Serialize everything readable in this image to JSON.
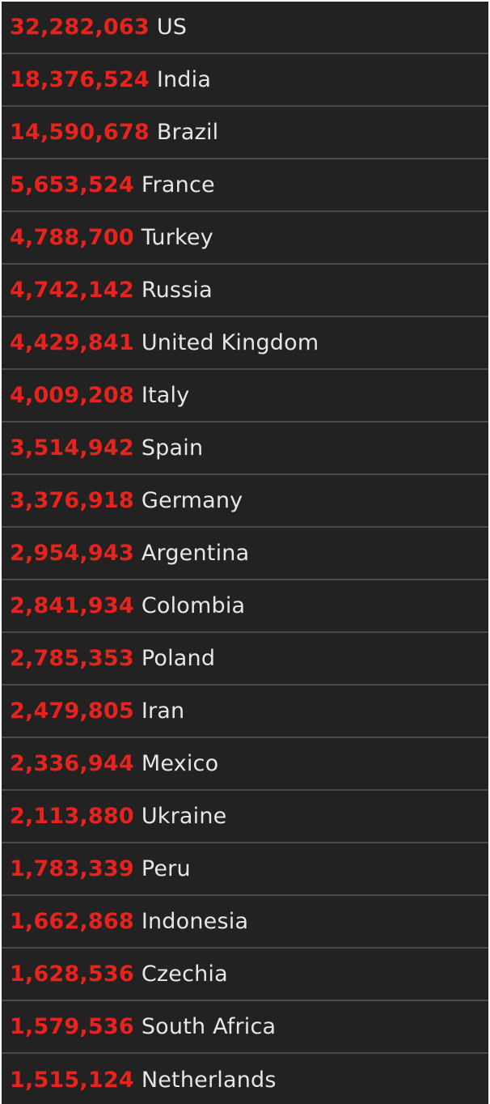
{
  "theme": {
    "panel_background": "#222222",
    "count_color": "#e8231e",
    "country_color": "#e6e6e6",
    "divider_color": "#4a4a4a"
  },
  "rows": [
    {
      "count": "32,282,063",
      "country": "US"
    },
    {
      "count": "18,376,524",
      "country": "India"
    },
    {
      "count": "14,590,678",
      "country": "Brazil"
    },
    {
      "count": "5,653,524",
      "country": "France"
    },
    {
      "count": "4,788,700",
      "country": "Turkey"
    },
    {
      "count": "4,742,142",
      "country": "Russia"
    },
    {
      "count": "4,429,841",
      "country": "United Kingdom"
    },
    {
      "count": "4,009,208",
      "country": "Italy"
    },
    {
      "count": "3,514,942",
      "country": "Spain"
    },
    {
      "count": "3,376,918",
      "country": "Germany"
    },
    {
      "count": "2,954,943",
      "country": "Argentina"
    },
    {
      "count": "2,841,934",
      "country": "Colombia"
    },
    {
      "count": "2,785,353",
      "country": "Poland"
    },
    {
      "count": "2,479,805",
      "country": "Iran"
    },
    {
      "count": "2,336,944",
      "country": "Mexico"
    },
    {
      "count": "2,113,880",
      "country": "Ukraine"
    },
    {
      "count": "1,783,339",
      "country": "Peru"
    },
    {
      "count": "1,662,868",
      "country": "Indonesia"
    },
    {
      "count": "1,628,536",
      "country": "Czechia"
    },
    {
      "count": "1,579,536",
      "country": "South Africa"
    },
    {
      "count": "1,515,124",
      "country": "Netherlands"
    }
  ]
}
